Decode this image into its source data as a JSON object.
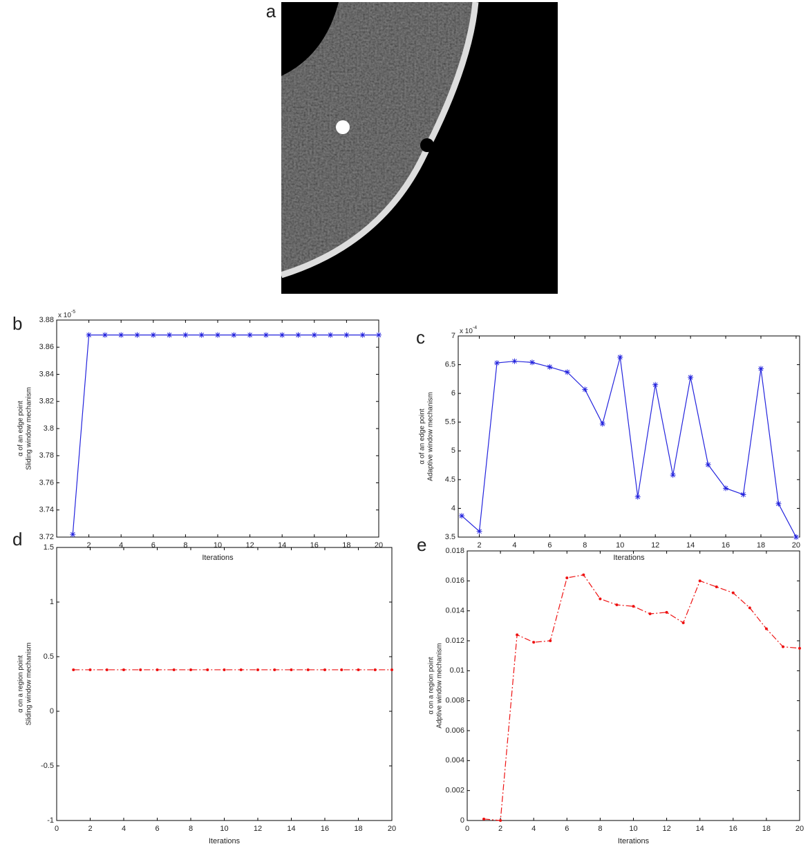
{
  "image_panel": {
    "label": "a"
  },
  "chart_data": [
    {
      "type": "line",
      "panel_label": "b",
      "ylabel": [
        "α of an edge point",
        "Sliding window mechanism"
      ],
      "xlabel": "Iterations",
      "y_scale_base": "x 10",
      "y_scale_exp": "-5",
      "x": [
        1,
        2,
        3,
        4,
        5,
        6,
        7,
        8,
        9,
        10,
        11,
        12,
        13,
        14,
        15,
        16,
        17,
        18,
        19,
        20
      ],
      "series": [
        {
          "color": "#2222dd",
          "marker": "star",
          "line_style": "solid",
          "values": [
            3.722,
            3.869,
            3.869,
            3.869,
            3.869,
            3.869,
            3.869,
            3.869,
            3.869,
            3.869,
            3.869,
            3.869,
            3.869,
            3.869,
            3.869,
            3.869,
            3.869,
            3.869,
            3.869,
            3.869
          ]
        }
      ],
      "xlim": [
        0,
        20
      ],
      "ylim": [
        3.72,
        3.88
      ],
      "xticks": [
        2,
        4,
        6,
        8,
        10,
        12,
        14,
        16,
        18,
        20
      ],
      "yticks": [
        3.72,
        3.74,
        3.76,
        3.78,
        3.8,
        3.82,
        3.84,
        3.86,
        3.88
      ]
    },
    {
      "type": "line",
      "panel_label": "c",
      "ylabel": [
        "α of an edge point",
        "Adaptive window mechanism"
      ],
      "xlabel": "Iterations",
      "y_scale_base": "x 10",
      "y_scale_exp": "-4",
      "x": [
        1,
        2,
        3,
        4,
        5,
        6,
        7,
        8,
        9,
        10,
        11,
        12,
        13,
        14,
        15,
        16,
        17,
        18,
        19,
        20
      ],
      "series": [
        {
          "color": "#2222dd",
          "marker": "star",
          "line_style": "solid",
          "values": [
            3.87,
            3.6,
            6.53,
            6.56,
            6.54,
            6.46,
            6.37,
            6.07,
            5.47,
            6.63,
            4.2,
            6.15,
            4.58,
            6.28,
            4.76,
            4.35,
            4.24,
            6.43,
            4.08,
            3.5
          ]
        }
      ],
      "xlim": [
        0.8,
        20.2
      ],
      "ylim": [
        3.5,
        7
      ],
      "xticks": [
        2,
        4,
        6,
        8,
        10,
        12,
        14,
        16,
        18,
        20
      ],
      "yticks": [
        3.5,
        4,
        4.5,
        5,
        5.5,
        6,
        6.5,
        7
      ]
    },
    {
      "type": "line",
      "panel_label": "d",
      "ylabel": [
        "α on a region point",
        "Sliding window mechanism"
      ],
      "xlabel": "Iterations",
      "x": [
        1,
        2,
        3,
        4,
        5,
        6,
        7,
        8,
        9,
        10,
        11,
        12,
        13,
        14,
        15,
        16,
        17,
        18,
        19,
        20
      ],
      "series": [
        {
          "color": "#ee1111",
          "marker": "dot",
          "line_style": "dashdot",
          "values": [
            0.38,
            0.38,
            0.38,
            0.38,
            0.38,
            0.38,
            0.38,
            0.38,
            0.38,
            0.38,
            0.38,
            0.38,
            0.38,
            0.38,
            0.38,
            0.38,
            0.38,
            0.38,
            0.38,
            0.38
          ]
        }
      ],
      "xlim": [
        0,
        20
      ],
      "ylim": [
        -1,
        1.5
      ],
      "xticks": [
        0,
        2,
        4,
        6,
        8,
        10,
        12,
        14,
        16,
        18,
        20
      ],
      "yticks": [
        -1,
        -0.5,
        0,
        0.5,
        1,
        1.5
      ]
    },
    {
      "type": "line",
      "panel_label": "e",
      "ylabel": [
        "α on a region point",
        "Adptive window mechanism"
      ],
      "xlabel": "Iterations",
      "x": [
        1,
        2,
        3,
        4,
        5,
        6,
        7,
        8,
        9,
        10,
        11,
        12,
        13,
        14,
        15,
        16,
        17,
        18,
        19,
        20
      ],
      "series": [
        {
          "color": "#ee1111",
          "marker": "dot",
          "line_style": "dashdot",
          "values": [
            0.0001,
            0,
            0.0124,
            0.0119,
            0.012,
            0.0162,
            0.0164,
            0.0148,
            0.0144,
            0.0143,
            0.0138,
            0.0139,
            0.0132,
            0.016,
            0.0156,
            0.0152,
            0.0142,
            0.0128,
            0.0116,
            0.0115
          ]
        }
      ],
      "xlim": [
        0,
        20
      ],
      "ylim": [
        0,
        0.018
      ],
      "xticks": [
        0,
        2,
        4,
        6,
        8,
        10,
        12,
        14,
        16,
        18,
        20
      ],
      "yticks": [
        0,
        0.002,
        0.004,
        0.006,
        0.008,
        0.01,
        0.012,
        0.014,
        0.016,
        0.018
      ]
    }
  ]
}
